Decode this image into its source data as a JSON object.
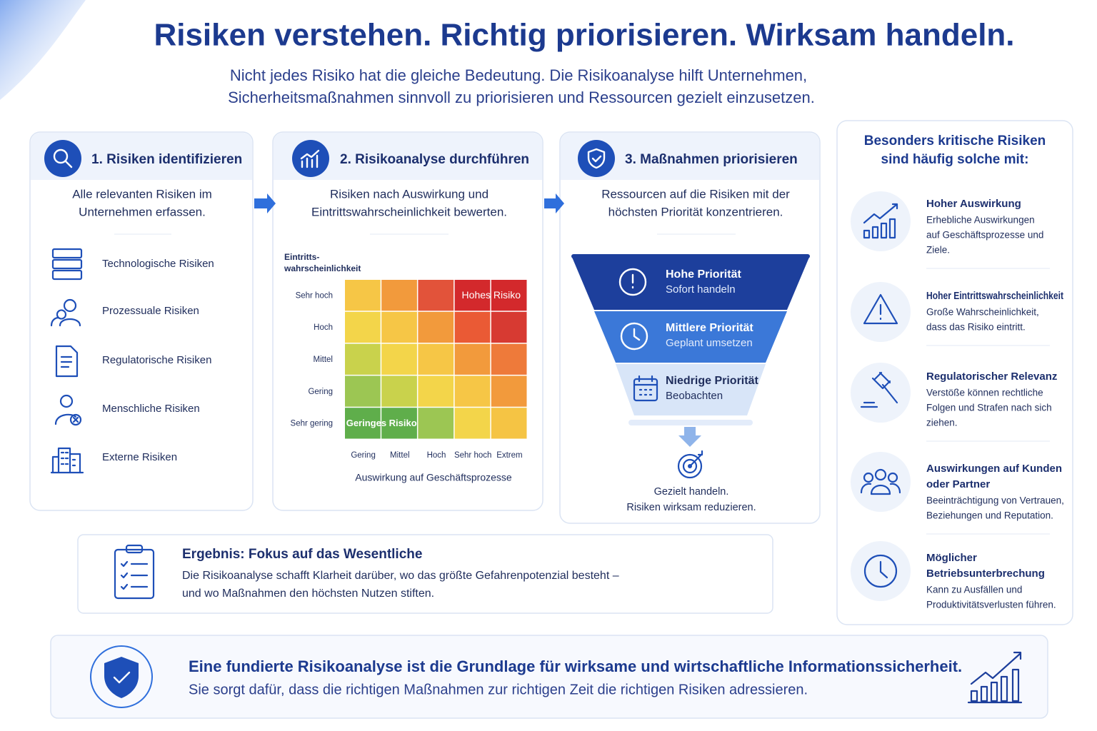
{
  "header": {
    "title": "Risiken verstehen. Richtig priorisieren. Wirksam handeln.",
    "subtitle": [
      "Nicht jedes Risiko hat die gleiche Bedeutung. Die Risikoanalyse hilft Unternehmen,",
      "Sicherheitsmaßnahmen sinnvoll zu priorisieren und Ressourcen gezielt einzusetzen."
    ]
  },
  "steps": [
    {
      "title": "1. Risiken identifizieren",
      "description": [
        "Alle relevanten Risiken im",
        "Unternehmen erfassen."
      ],
      "items": [
        "Technologische Risiken",
        "Prozessuale Risiken",
        "Regulatorische Risiken",
        "Menschliche Risiken",
        "Externe Risiken"
      ]
    },
    {
      "title": "2. Risikoanalyse durchführen",
      "description": [
        "Risiken nach Auswirkung und",
        "Eintrittswahrscheinlichkeit bewerten."
      ],
      "matrix": {
        "y_label": [
          "Eintritts-",
          "wahrscheinlichkeit"
        ],
        "rows": [
          "Sehr hoch",
          "Hoch",
          "Mittel",
          "Gering",
          "Sehr gering"
        ],
        "columns": [
          "Gering",
          "Mittel",
          "Hoch",
          "Sehr hoch",
          "Extrem"
        ],
        "high_label": "Hohes Risiko",
        "low_label": "Geringes Risiko",
        "x_label": "Auswirkung auf Geschäftsprozesse"
      }
    },
    {
      "title": "3. Maßnahmen priorisieren",
      "description": [
        "Ressourcen auf die Risiken mit der",
        "höchsten Priorität konzentrieren."
      ],
      "levels": [
        {
          "title": "Hohe Priorität",
          "subtitle": "Sofort handeln"
        },
        {
          "title": "Mittlere Priorität",
          "subtitle": "Geplant umsetzen"
        },
        {
          "title": "Niedrige Priorität",
          "subtitle": "Beobachten"
        }
      ],
      "footer": [
        "Gezielt handeln.",
        "Risiken wirksam reduzieren."
      ]
    }
  ],
  "sidebar": {
    "title": [
      "Besonders kritische Risiken",
      "sind häufig solche mit:"
    ],
    "items": [
      {
        "title": [
          "Hoher Auswirkung"
        ],
        "description": [
          "Erhebliche Auswirkungen",
          "auf Geschäftsprozesse und",
          "Ziele."
        ]
      },
      {
        "title": [
          "Hoher Eintrittswahrscheinlichkeit"
        ],
        "description": [
          "Große Wahrscheinlichkeit,",
          "dass das Risiko eintritt."
        ]
      },
      {
        "title": [
          "Regulatorischer Relevanz"
        ],
        "description": [
          "Verstöße können rechtliche",
          "Folgen und Strafen nach sich",
          "ziehen."
        ]
      },
      {
        "title": [
          "Auswirkungen auf Kunden",
          "oder Partner"
        ],
        "description": [
          "Beeinträchtigung von Vertrauen,",
          "Beziehungen und Reputation."
        ]
      },
      {
        "title": [
          "Möglicher",
          "Betriebsunterbrechung"
        ],
        "description": [
          "Kann zu Ausfällen und",
          "Produktivitätsverlusten führen."
        ]
      }
    ]
  },
  "result": {
    "title": "Ergebnis: Fokus auf das Wesentliche",
    "description": [
      "Die Risikoanalyse schafft Klarheit darüber, wo das größte Gefahrenpotenzial besteht –",
      "und wo Maßnahmen den höchsten Nutzen stiften."
    ]
  },
  "footer": {
    "title": "Eine fundierte Risikoanalyse ist die Grundlage für wirksame und wirtschaftliche Informationssicherheit.",
    "subtitle": "Sie sorgt dafür, dass die richtigen Maßnahmen zur richtigen Zeit die richtigen Risiken adressieren."
  }
}
